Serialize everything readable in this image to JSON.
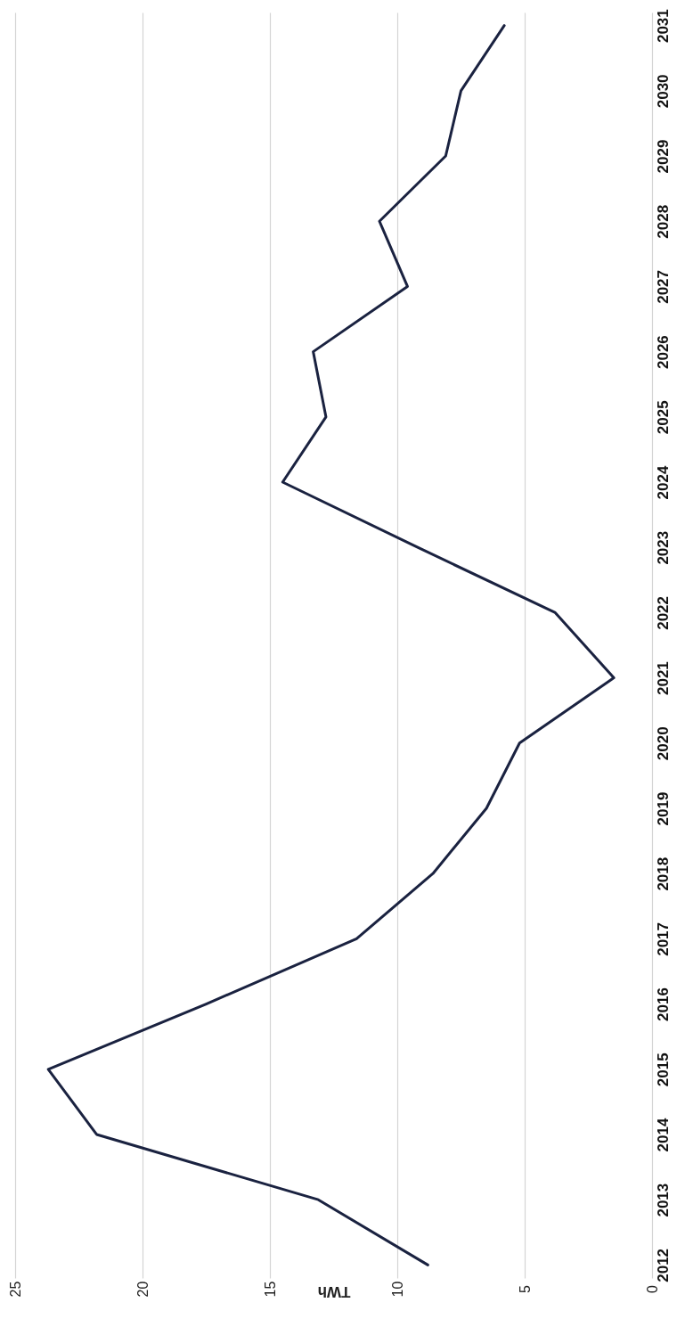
{
  "chart_data": {
    "type": "line",
    "orientation": "horizontal",
    "xlabel": "TWh",
    "categories": [
      "2031",
      "2030",
      "2029",
      "2028",
      "2027",
      "2026",
      "2025",
      "2024",
      "2023",
      "2022",
      "2021",
      "2020",
      "2019",
      "2018",
      "2017",
      "2016",
      "2015",
      "2014",
      "2013",
      "2012"
    ],
    "series": [
      {
        "color": "#1a2240",
        "values": [
          5.8,
          7.5,
          8.1,
          10.7,
          9.6,
          13.3,
          12.8,
          14.5,
          9.2,
          3.8,
          1.5,
          5.2,
          6.5,
          8.6,
          11.6,
          17.5,
          23.7,
          21.8,
          13.1,
          8.8
        ]
      }
    ],
    "xlim": [
      25,
      0
    ],
    "xticks": [
      0,
      5,
      10,
      15,
      20,
      25
    ],
    "grid": "x",
    "marker": "none",
    "line_style": "solid"
  }
}
